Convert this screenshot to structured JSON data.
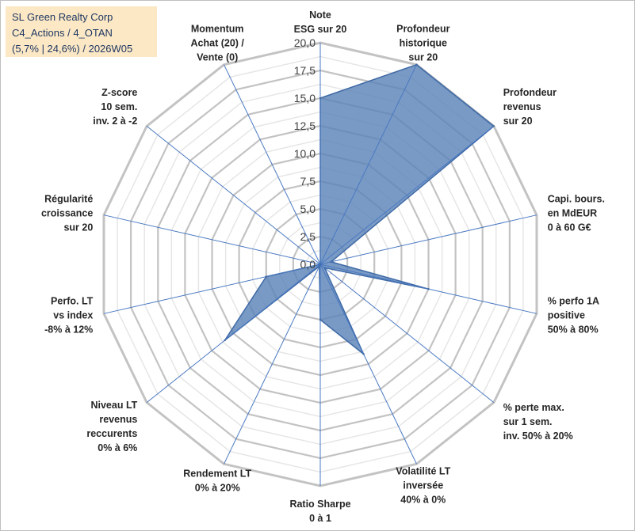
{
  "title_box": {
    "line1": "SL Green Realty Corp",
    "line2": "C4_Actions / 4_OTAN",
    "line3": "(5,7% | 24,6%) / 2026W05"
  },
  "chart_data": {
    "type": "radar",
    "axes": [
      [
        "Note",
        "ESG sur 20"
      ],
      [
        "Profondeur",
        "historique",
        "sur 20"
      ],
      [
        "Profondeur",
        "revenus",
        "sur 20"
      ],
      [
        "Capi. bours.",
        "en MdEUR",
        "0 à 60 G€"
      ],
      [
        "% perfo 1A",
        "positive",
        "50% à 80%"
      ],
      [
        "% perte max.",
        "sur 1 sem.",
        "inv. 50% à 20%"
      ],
      [
        "Volatilité LT",
        "inversée",
        "40% à 0%"
      ],
      [
        "Ratio Sharpe",
        "0 à 1"
      ],
      [
        "Rendement LT",
        "0% à 20%"
      ],
      [
        "Niveau LT",
        "revenus",
        "reccurents",
        "0% à 6%"
      ],
      [
        "Perfo. LT",
        "vs index",
        "-8% à 12%"
      ],
      [
        "Régularité",
        "croissance",
        "sur 20"
      ],
      [
        "Z-score",
        "10 sem.",
        "inv. 2 à -2"
      ],
      [
        "Momentum",
        "Achat (20) /",
        "Vente (0)"
      ]
    ],
    "values": [
      15,
      20,
      20,
      1,
      10,
      0.5,
      9,
      5,
      0.2,
      11,
      5,
      0,
      0,
      0
    ],
    "r_ticks": [
      "0,0",
      "2,5",
      "5,0",
      "7,5",
      "10,0",
      "12,5",
      "15,0",
      "17,5",
      "20,0"
    ],
    "rmin": 0,
    "rmax": 20,
    "grid": true,
    "series_color": "#5b84b8",
    "series_edge": "#3f6aa6",
    "grid_color": "#c3c3c3"
  }
}
